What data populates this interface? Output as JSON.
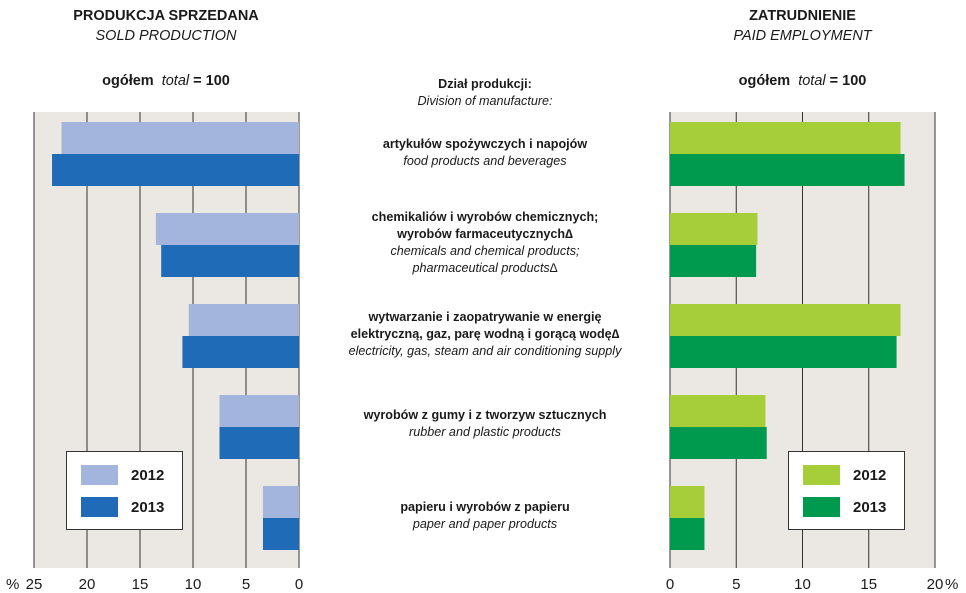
{
  "left_panel": {
    "title_pl": "PRODUKCJA SPRZEDANA",
    "title_en": "SOLD PRODUCTION",
    "total_prefix": "ogółem",
    "total_italic": "total",
    "total_suffix": "= 100"
  },
  "right_panel": {
    "title_pl": "ZATRUDNIENIE",
    "title_en": "PAID EMPLOYMENT",
    "total_prefix": "ogółem",
    "total_italic": "total",
    "total_suffix": "= 100"
  },
  "center_header": {
    "pl": "Dział produkcji:",
    "en": "Division of manufacture:"
  },
  "categories": [
    {
      "pl": [
        "artykułów spożywczych i napojów"
      ],
      "en": [
        "food products and beverages"
      ]
    },
    {
      "pl": [
        "chemikaliów i wyrobów chemicznych;",
        "wyrobów farmaceutycznych∆"
      ],
      "en": [
        "chemicals and chemical products;",
        "pharmaceutical products∆"
      ]
    },
    {
      "pl": [
        "wytwarzanie i zaopatrywanie w energię",
        "elektryczną, gaz, parę wodną i gorącą wodę∆"
      ],
      "en": [
        "electricity, gas, steam and air conditioning supply"
      ]
    },
    {
      "pl": [
        "wyrobów z gumy i z tworzyw sztucznych"
      ],
      "en": [
        "rubber and plastic products"
      ]
    },
    {
      "pl": [
        "papieru i wyrobów z papieru"
      ],
      "en": [
        "paper and paper products"
      ]
    }
  ],
  "chart_data": [
    {
      "type": "bar",
      "orientation": "horizontal",
      "direction": "right-to-left",
      "title": "PRODUKCJA SPRZEDANA / SOLD PRODUCTION",
      "xlim": [
        0,
        25
      ],
      "ticks": [
        0,
        5,
        10,
        15,
        20,
        25
      ],
      "tick_labels": [
        "0",
        "5",
        "10",
        "15",
        "20",
        "25"
      ],
      "unit_label": "%",
      "grid": true,
      "legend": "bottom-left",
      "series": [
        {
          "name": "2012",
          "color": "#a3b5dd",
          "values": [
            22.4,
            13.5,
            10.4,
            7.5,
            3.4
          ]
        },
        {
          "name": "2013",
          "color": "#1f6bb7",
          "values": [
            23.3,
            13.0,
            11.0,
            7.5,
            3.4
          ]
        }
      ]
    },
    {
      "type": "bar",
      "orientation": "horizontal",
      "direction": "left-to-right",
      "title": "ZATRUDNIENIE / PAID EMPLOYMENT",
      "xlim": [
        0,
        20
      ],
      "ticks": [
        0,
        5,
        10,
        15,
        20
      ],
      "tick_labels": [
        "0",
        "5",
        "10",
        "15",
        "20"
      ],
      "unit_label": "%",
      "grid": true,
      "legend": "bottom-right",
      "series": [
        {
          "name": "2012",
          "color": "#a6ce39",
          "values": [
            17.4,
            6.6,
            17.4,
            7.2,
            2.6
          ]
        },
        {
          "name": "2013",
          "color": "#009a4e",
          "values": [
            17.7,
            6.5,
            17.1,
            7.3,
            2.6
          ]
        }
      ]
    }
  ]
}
